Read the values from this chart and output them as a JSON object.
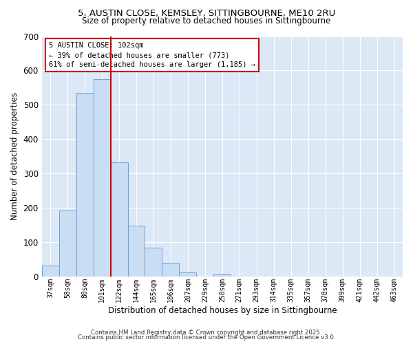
{
  "title1": "5, AUSTIN CLOSE, KEMSLEY, SITTINGBOURNE, ME10 2RU",
  "title2": "Size of property relative to detached houses in Sittingbourne",
  "xlabel": "Distribution of detached houses by size in Sittingbourne",
  "ylabel": "Number of detached properties",
  "bar_labels": [
    "37sqm",
    "58sqm",
    "80sqm",
    "101sqm",
    "122sqm",
    "144sqm",
    "165sqm",
    "186sqm",
    "207sqm",
    "229sqm",
    "250sqm",
    "271sqm",
    "293sqm",
    "314sqm",
    "335sqm",
    "357sqm",
    "378sqm",
    "399sqm",
    "421sqm",
    "442sqm",
    "463sqm"
  ],
  "bar_values": [
    32,
    193,
    535,
    575,
    332,
    148,
    85,
    40,
    12,
    0,
    8,
    0,
    0,
    0,
    0,
    0,
    0,
    0,
    0,
    0,
    0
  ],
  "bar_color": "#c9ddf5",
  "bar_edge_color": "#6aa0d4",
  "highlight_line_index": 3,
  "highlight_line_color": "#cc0000",
  "annotation_text": "5 AUSTIN CLOSE: 102sqm\n← 39% of detached houses are smaller (773)\n61% of semi-detached houses are larger (1,185) →",
  "annotation_box_color": "#ffffff",
  "annotation_box_edge_color": "#cc0000",
  "ylim": [
    0,
    700
  ],
  "yticks": [
    0,
    100,
    200,
    300,
    400,
    500,
    600,
    700
  ],
  "plot_bg_color": "#dce8f5",
  "fig_bg_color": "#ffffff",
  "footer1": "Contains HM Land Registry data © Crown copyright and database right 2025.",
  "footer2": "Contains public sector information licensed under the Open Government Licence v3.0."
}
